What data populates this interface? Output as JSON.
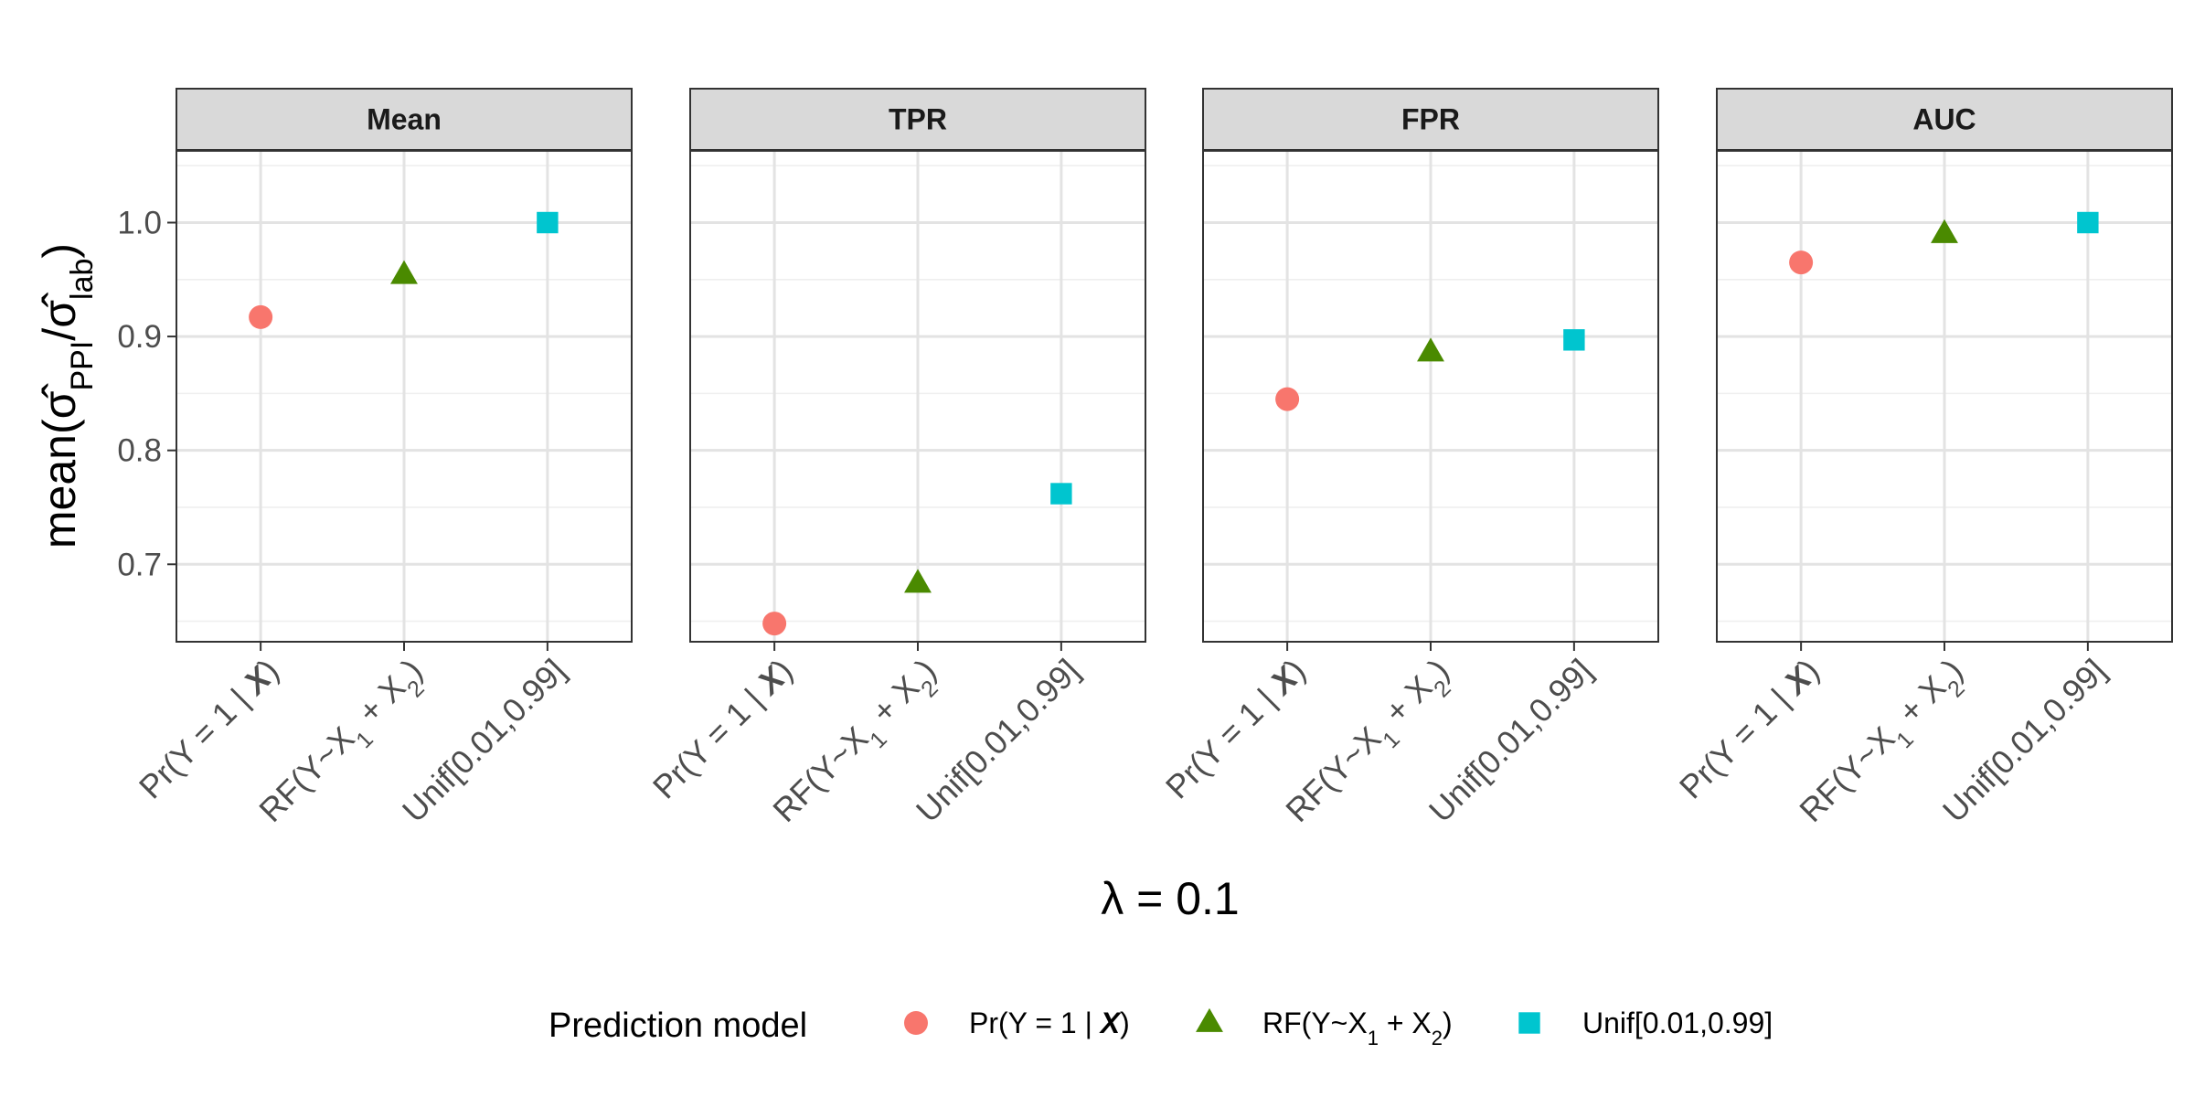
{
  "chart_data": {
    "type": "scatter",
    "facet_strips": [
      "Mean",
      "TPR",
      "FPR",
      "AUC"
    ],
    "categories": [
      "Pr(Y = 1 | X)",
      "RF(Y~X1 + X2)",
      "Unif[0.01,0.99]"
    ],
    "series": [
      {
        "name": "Pr(Y = 1 | X)",
        "shape": "circle",
        "color": "#F8766D",
        "values": {
          "Mean": 0.917,
          "TPR": 0.648,
          "FPR": 0.845,
          "AUC": 0.965
        }
      },
      {
        "name": "RF(Y~X1 + X2)",
        "shape": "triangle",
        "color": "#4A8A00",
        "values": {
          "Mean": 0.954,
          "TPR": 0.683,
          "FPR": 0.886,
          "AUC": 0.99
        }
      },
      {
        "name": "Unif[0.01,0.99]",
        "shape": "square",
        "color": "#00C5CF",
        "values": {
          "Mean": 1.0,
          "TPR": 0.762,
          "FPR": 0.897,
          "AUC": 1.0
        }
      }
    ],
    "ylim": [
      0.632,
      1.063
    ],
    "yticks": [
      0.7,
      0.8,
      0.9,
      1.0
    ],
    "ytick_labels": [
      "0.7",
      "0.8",
      "0.9",
      "1.0"
    ],
    "xlabel": "λ = 0.1",
    "ylabel": "mean(σ̂PPI / σ̂lab)",
    "legend": {
      "title": "Prediction model",
      "position": "bottom"
    },
    "grid": true
  }
}
